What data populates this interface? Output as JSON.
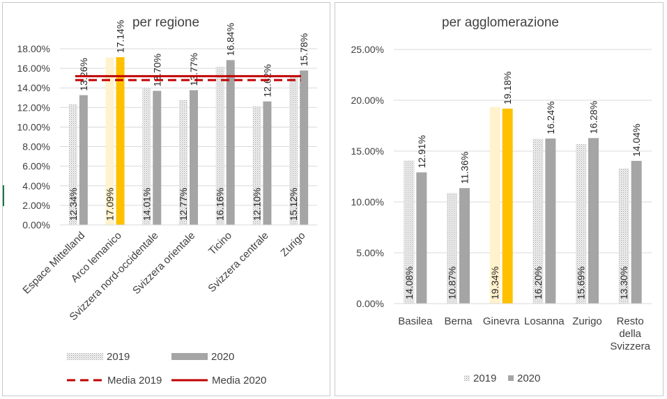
{
  "chart_data": [
    {
      "type": "bar",
      "title": "per regione",
      "categories": [
        "Espace Mittelland",
        "Arco lemanico",
        "Svizzera nord-occidentale",
        "Svizzera orientale",
        "Ticino",
        "Svizzera centrale",
        "Zurigo"
      ],
      "series": [
        {
          "name": "2019",
          "values": [
            12.34,
            17.09,
            14.01,
            12.77,
            16.16,
            12.1,
            15.12
          ]
        },
        {
          "name": "2020",
          "values": [
            13.26,
            17.14,
            13.7,
            13.77,
            16.84,
            12.62,
            15.78
          ]
        }
      ],
      "reference_lines": [
        {
          "name": "Media 2019",
          "value": 14.8,
          "style": "dashed"
        },
        {
          "name": "Media 2020",
          "value": 15.2,
          "style": "solid"
        }
      ],
      "data_labels": {
        "2019": [
          "12.34%",
          "17.09%",
          "14.01%",
          "12.77%",
          "16.16%",
          "12.10%",
          "15.12%"
        ],
        "2020": [
          "13.26%",
          "17.14%",
          "13.70%",
          "13.77%",
          "16.84%",
          "12.62%",
          "15.78%"
        ]
      },
      "highlight_category": "Arco lemanico",
      "y_ticks": [
        "0.00%",
        "2.00%",
        "4.00%",
        "6.00%",
        "8.00%",
        "10.00%",
        "12.00%",
        "14.00%",
        "16.00%",
        "18.00%"
      ],
      "ylim": [
        0,
        18
      ],
      "grid": true,
      "legend_position": "bottom",
      "colors": {
        "s2019": "#d9d9d9",
        "s2020": "#a5a5a5",
        "hl2019": "#fff2cc",
        "hl2020": "#ffc000",
        "mean": "#c00000",
        "grid": "#d9d9d9",
        "text": "#404040"
      }
    },
    {
      "type": "bar",
      "title": "per agglomerazione",
      "categories": [
        "Basilea",
        "Berna",
        "Ginevra",
        "Losanna",
        "Zurigo",
        "Resto della Svizzera"
      ],
      "category_lines": [
        [
          "Basilea"
        ],
        [
          "Berna"
        ],
        [
          "Ginevra"
        ],
        [
          "Losanna"
        ],
        [
          "Zurigo"
        ],
        [
          "Resto",
          "della",
          "Svizzera"
        ]
      ],
      "series": [
        {
          "name": "2019",
          "values": [
            14.08,
            10.87,
            19.34,
            16.2,
            15.69,
            13.3
          ]
        },
        {
          "name": "2020",
          "values": [
            12.91,
            11.36,
            19.18,
            16.24,
            16.28,
            14.04
          ]
        }
      ],
      "data_labels": {
        "2019": [
          "14.08%",
          "10.87%",
          "19.34%",
          "16.20%",
          "15.69%",
          "13.30%"
        ],
        "2020": [
          "12.91%",
          "11.36%",
          "19.18%",
          "16.24%",
          "16.28%",
          "14.04%"
        ]
      },
      "highlight_category": "Ginevra",
      "y_ticks": [
        "0.00%",
        "5.00%",
        "10.00%",
        "15.00%",
        "20.00%",
        "25.00%"
      ],
      "ylim": [
        0,
        25
      ],
      "grid": true,
      "legend_position": "bottom",
      "colors": {
        "s2019": "#d9d9d9",
        "s2020": "#a5a5a5",
        "hl2019": "#fff2cc",
        "hl2020": "#ffc000",
        "grid": "#d9d9d9",
        "text": "#404040"
      }
    }
  ]
}
